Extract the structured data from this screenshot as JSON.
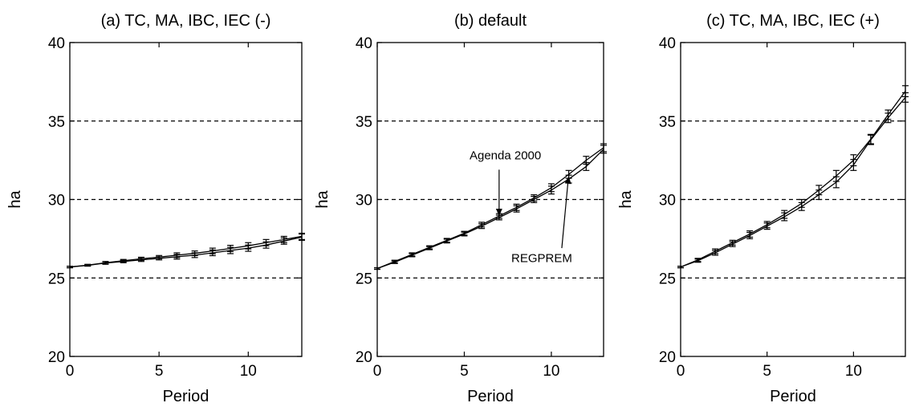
{
  "chart_data": [
    {
      "type": "line",
      "title": "(a) TC, MA, IBC, IEC (-)",
      "xlabel": "Period",
      "ylabel": "ha",
      "xlim": [
        0,
        13
      ],
      "ylim": [
        20,
        40
      ],
      "xticks": [
        "0",
        "5",
        "10"
      ],
      "yticks": [
        "20",
        "25",
        "30",
        "35",
        "40"
      ],
      "grid_y": [
        25,
        30,
        35
      ],
      "x": [
        0,
        1,
        2,
        3,
        4,
        5,
        6,
        7,
        8,
        9,
        10,
        11,
        12,
        13
      ],
      "series": [
        {
          "values": [
            25.7,
            25.8,
            25.95,
            26.05,
            26.15,
            26.25,
            26.35,
            26.45,
            26.6,
            26.75,
            26.9,
            27.1,
            27.35,
            27.6
          ],
          "err": [
            0.05,
            0.05,
            0.08,
            0.08,
            0.1,
            0.1,
            0.15,
            0.15,
            0.18,
            0.2,
            0.2,
            0.2,
            0.2,
            0.2
          ]
        },
        {
          "values": [
            25.7,
            25.82,
            25.97,
            26.1,
            26.22,
            26.33,
            26.45,
            26.57,
            26.72,
            26.88,
            27.05,
            27.25,
            27.45,
            27.65
          ],
          "err": [
            0.05,
            0.05,
            0.08,
            0.08,
            0.1,
            0.1,
            0.15,
            0.15,
            0.18,
            0.2,
            0.2,
            0.2,
            0.2,
            0.2
          ]
        }
      ],
      "annotations": []
    },
    {
      "type": "line",
      "title": "(b) default",
      "xlabel": "Period",
      "ylabel": "ha",
      "xlim": [
        0,
        13
      ],
      "ylim": [
        20,
        40
      ],
      "xticks": [
        "0",
        "5",
        "10"
      ],
      "yticks": [
        "20",
        "25",
        "30",
        "35",
        "40"
      ],
      "grid_y": [
        25,
        30,
        35
      ],
      "x": [
        0,
        1,
        2,
        3,
        4,
        5,
        6,
        7,
        8,
        9,
        10,
        11,
        12,
        13
      ],
      "series": [
        {
          "name": "Agenda 2000",
          "values": [
            25.6,
            26.0,
            26.45,
            26.9,
            27.35,
            27.8,
            28.3,
            28.85,
            29.4,
            30.0,
            30.6,
            31.3,
            32.1,
            33.2
          ],
          "err": [
            0.05,
            0.08,
            0.1,
            0.1,
            0.12,
            0.12,
            0.15,
            0.15,
            0.2,
            0.2,
            0.25,
            0.25,
            0.25,
            0.25
          ]
        },
        {
          "name": "REGPREM",
          "values": [
            25.6,
            26.05,
            26.5,
            26.95,
            27.4,
            27.85,
            28.4,
            28.95,
            29.5,
            30.1,
            30.75,
            31.6,
            32.5,
            33.3
          ],
          "err": [
            0.05,
            0.08,
            0.1,
            0.1,
            0.12,
            0.12,
            0.15,
            0.15,
            0.2,
            0.2,
            0.25,
            0.25,
            0.25,
            0.25
          ]
        }
      ],
      "annotations": [
        {
          "text": "Agenda 2000",
          "series": 0,
          "x": 7
        },
        {
          "text": "REGPREM",
          "series": 1,
          "x": 11
        }
      ]
    },
    {
      "type": "line",
      "title": "(c) TC, MA, IBC, IEC (+)",
      "xlabel": "Period",
      "ylabel": "ha",
      "xlim": [
        0,
        13
      ],
      "ylim": [
        20,
        40
      ],
      "xticks": [
        "0",
        "5",
        "10"
      ],
      "yticks": [
        "20",
        "25",
        "30",
        "35",
        "40"
      ],
      "grid_y": [
        25,
        30,
        35
      ],
      "x": [
        0,
        1,
        2,
        3,
        4,
        5,
        6,
        7,
        8,
        9,
        10,
        11,
        12,
        13
      ],
      "series": [
        {
          "values": [
            25.7,
            26.1,
            26.6,
            27.15,
            27.7,
            28.3,
            28.9,
            29.55,
            30.3,
            31.1,
            32.2,
            33.8,
            35.2,
            36.5
          ],
          "err": [
            0.05,
            0.1,
            0.15,
            0.15,
            0.2,
            0.2,
            0.25,
            0.25,
            0.3,
            0.35,
            0.35,
            0.3,
            0.3,
            0.3
          ]
        },
        {
          "values": [
            25.7,
            26.15,
            26.7,
            27.25,
            27.8,
            28.4,
            29.05,
            29.75,
            30.6,
            31.5,
            32.5,
            33.85,
            35.4,
            36.9
          ],
          "err": [
            0.05,
            0.1,
            0.15,
            0.15,
            0.2,
            0.2,
            0.25,
            0.25,
            0.3,
            0.35,
            0.35,
            0.3,
            0.3,
            0.35
          ]
        }
      ],
      "annotations": []
    }
  ]
}
